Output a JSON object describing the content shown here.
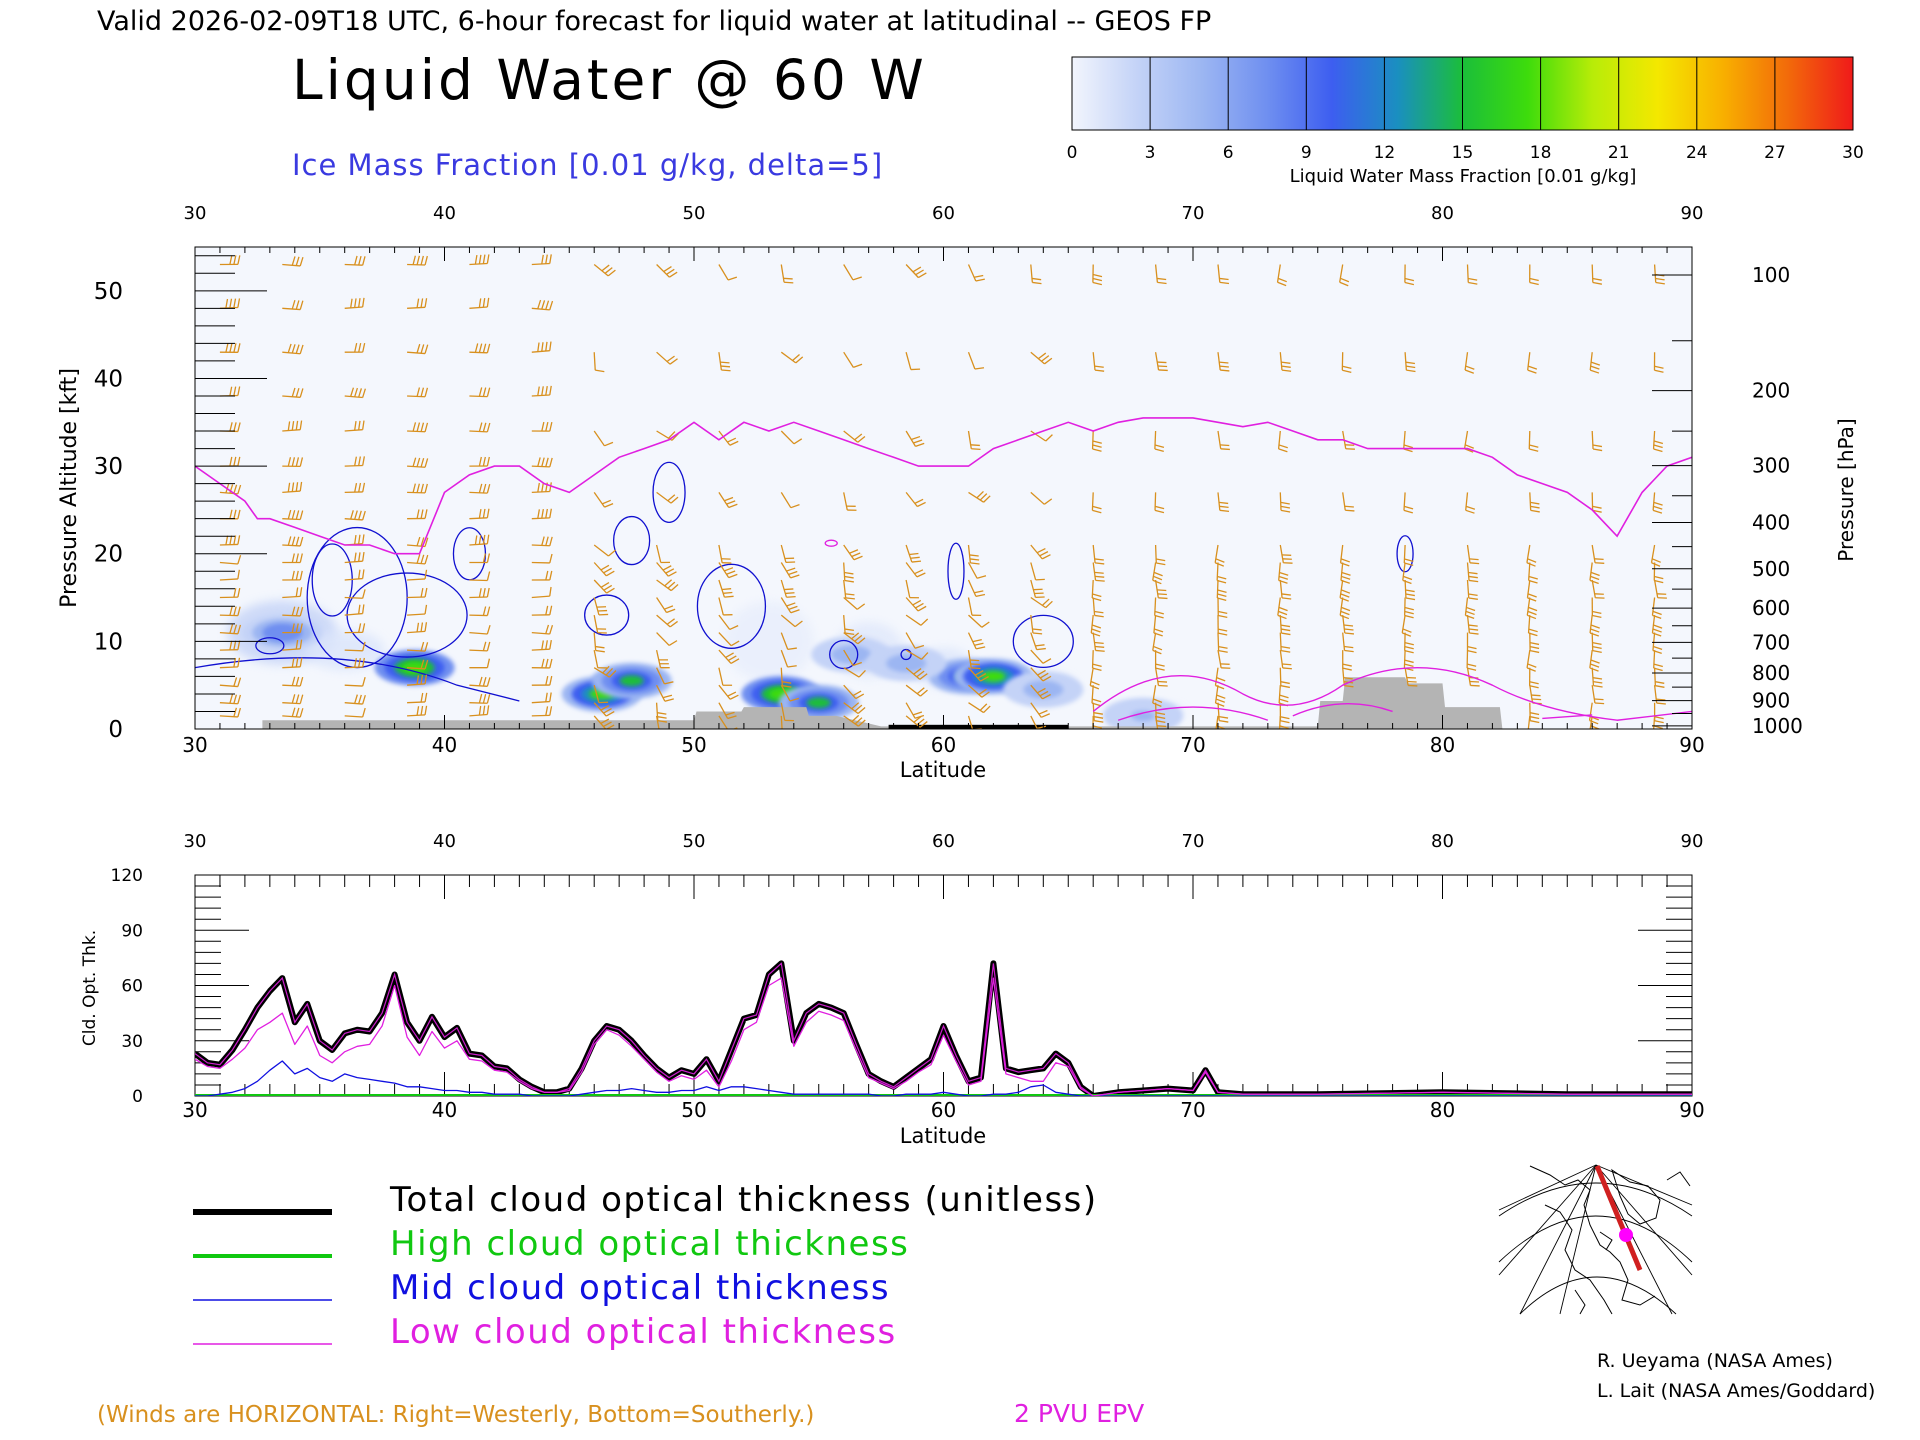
{
  "header": {
    "valid_line": "Valid 2026-02-09T18 UTC, 6-hour forecast for liquid water at latitudinal -- GEOS FP",
    "title": "Liquid Water @ 60 W",
    "subtitle": "Ice Mass Fraction [0.01 g/kg, delta=5]"
  },
  "colorbar": {
    "label": "Liquid Water Mass Fraction [0.01 g/kg]",
    "ticks": [
      "0",
      "3",
      "6",
      "9",
      "12",
      "15",
      "18",
      "21",
      "24",
      "27",
      "30"
    ],
    "colors": [
      "#f2f5fd",
      "#c4d3f7",
      "#9cb6f2",
      "#6f8ff0",
      "#3d5ef0",
      "#1a8fc0",
      "#1bbe3a",
      "#3ddc0c",
      "#b8ec08",
      "#f4e800",
      "#f8b000",
      "#f26a0a",
      "#f01a1a"
    ]
  },
  "colors": {
    "wind": "#d8901e",
    "ice_contour": "#1010d0",
    "epv": "#e020e0",
    "terrain": "#b4b4b4",
    "total": "#000000",
    "high": "#10c810",
    "mid": "#1010e0",
    "low": "#e020e0"
  },
  "top_panel": {
    "xlabel": "Latitude",
    "ylabel_left": "Pressure Altitude [kft]",
    "ylabel_right": "Pressure [hPa]",
    "x_ticks": [
      "30",
      "40",
      "50",
      "60",
      "70",
      "80",
      "90"
    ],
    "kft_ticks": [
      "0",
      "10",
      "20",
      "30",
      "40",
      "50"
    ],
    "hpa_ticks": [
      "100",
      "200",
      "300",
      "400",
      "500",
      "600",
      "700",
      "800",
      "900",
      "1000"
    ],
    "hpa_values": [
      100,
      200,
      300,
      400,
      500,
      600,
      700,
      800,
      900,
      1000
    ]
  },
  "bottom_panel": {
    "xlabel": "Latitude",
    "ylabel": "Cld. Opt. Thk.",
    "x_ticks": [
      "30",
      "40",
      "50",
      "60",
      "70",
      "80",
      "90"
    ],
    "y_ticks": [
      "0",
      "30",
      "60",
      "90",
      "120"
    ]
  },
  "legend": [
    {
      "label": "Total cloud optical thickness (unitless)",
      "color": "#000000"
    },
    {
      "label": "High cloud optical thickness",
      "color": "#10c810"
    },
    {
      "label": "Mid cloud optical thickness",
      "color": "#1010e0"
    },
    {
      "label": "Low cloud optical thickness",
      "color": "#e020e0"
    }
  ],
  "footer": {
    "winds_note": "(Winds are HORIZONTAL: Right=Westerly, Bottom=Southerly.)",
    "epv_note": "2 PVU EPV",
    "credit1": "R. Ueyama (NASA Ames)",
    "credit2": "L. Lait (NASA Ames/Goddard)"
  },
  "chart_data": [
    {
      "type": "heatmap",
      "title": "Liquid Water @ 60 W",
      "xlabel": "Latitude",
      "ylabel": "Pressure Altitude [kft]",
      "xlim": [
        30,
        90
      ],
      "ylim": [
        0,
        55
      ],
      "units": "0.01 g/kg",
      "liquid_water_blobs": [
        {
          "lat": 38.8,
          "alt_kft": 7.0,
          "peak": 18
        },
        {
          "lat": 46.3,
          "alt_kft": 4.0,
          "peak": 17
        },
        {
          "lat": 47.5,
          "alt_kft": 5.5,
          "peak": 14
        },
        {
          "lat": 53.5,
          "alt_kft": 4.0,
          "peak": 18
        },
        {
          "lat": 55.0,
          "alt_kft": 3.0,
          "peak": 14
        },
        {
          "lat": 61.0,
          "alt_kft": 6.0,
          "peak": 14
        },
        {
          "lat": 62.0,
          "alt_kft": 6.0,
          "peak": 17
        },
        {
          "lat": 33.5,
          "alt_kft": 11.0,
          "peak": 8
        },
        {
          "lat": 56.3,
          "alt_kft": 8.5,
          "peak": 6
        },
        {
          "lat": 58.5,
          "alt_kft": 7.5,
          "peak": 5
        },
        {
          "lat": 64.0,
          "alt_kft": 4.5,
          "peak": 6
        },
        {
          "lat": 68.0,
          "alt_kft": 1.5,
          "peak": 4
        }
      ],
      "epv_2pvu_kft": {
        "lat": [
          30,
          31,
          32,
          32.5,
          33,
          34,
          35,
          36,
          37,
          38,
          39,
          40,
          41,
          42,
          43,
          44,
          45,
          46,
          47,
          48,
          49,
          50,
          51,
          52,
          53,
          54,
          55,
          56,
          57,
          58,
          59,
          60,
          61,
          62,
          63,
          64,
          65,
          66,
          67,
          68,
          69,
          70,
          71,
          72,
          73,
          74,
          75,
          76,
          77,
          78,
          79,
          80,
          81,
          82,
          83,
          84,
          85,
          86,
          87,
          88,
          89,
          90
        ],
        "kft": [
          30,
          28,
          26,
          24,
          24,
          23,
          22,
          21,
          21,
          20,
          20,
          27,
          29,
          30,
          30,
          28,
          27,
          29,
          31,
          32,
          33,
          35,
          33,
          35,
          34,
          35,
          34,
          33,
          32,
          31,
          30,
          30,
          30,
          32,
          33,
          34,
          35,
          34,
          35,
          35.5,
          35.5,
          35.5,
          35,
          34.5,
          35,
          34,
          33,
          33,
          32,
          32,
          32,
          32,
          32,
          31,
          29,
          28,
          27,
          25,
          22,
          27,
          30,
          31
        ]
      },
      "terrain_kft": {
        "lat": [
          32.7,
          50.0,
          50.1,
          51.9,
          52.0,
          54.5,
          54.6,
          55.7,
          57.5,
          60.0,
          62.5,
          65.0,
          75.0,
          75.1,
          76.0,
          76.1,
          78.5,
          78.6,
          80.0,
          80.1,
          82.3,
          82.4
        ],
        "kft": [
          1.0,
          1.0,
          2.0,
          2.0,
          2.5,
          2.5,
          1.5,
          1.5,
          0.3,
          0.3,
          0.3,
          0.3,
          0.3,
          3.2,
          3.2,
          5.9,
          5.9,
          5.2,
          5.2,
          2.5,
          2.5,
          0.0
        ]
      }
    },
    {
      "type": "line",
      "xlabel": "Latitude",
      "ylabel": "Cld. Opt. Thk.",
      "xlim": [
        30,
        90
      ],
      "ylim": [
        0,
        120
      ],
      "x": [
        30,
        30.5,
        31,
        31.5,
        32,
        32.5,
        33,
        33.5,
        34,
        34.5,
        35,
        35.5,
        36,
        36.5,
        37,
        37.5,
        38,
        38.5,
        39,
        39.5,
        40,
        40.5,
        41,
        41.5,
        42,
        42.5,
        43,
        43.5,
        44,
        44.5,
        45,
        45.5,
        46,
        46.5,
        47,
        47.5,
        48,
        48.5,
        49,
        49.5,
        50,
        50.5,
        51,
        51.5,
        52,
        52.5,
        53,
        53.5,
        54,
        54.5,
        55,
        55.5,
        56,
        56.5,
        57,
        57.5,
        58,
        58.5,
        59,
        59.5,
        60,
        60.5,
        61,
        61.5,
        62,
        62.5,
        63,
        63.5,
        64,
        64.5,
        65,
        65.5,
        66,
        67,
        68,
        69,
        70,
        70.5,
        71,
        72,
        75,
        80,
        85,
        90
      ],
      "series": [
        {
          "name": "Total cloud optical thickness (unitless)",
          "values": [
            23,
            18,
            17,
            25,
            36,
            48,
            57,
            64,
            40,
            50,
            30,
            25,
            34,
            36,
            35,
            45,
            66,
            40,
            30,
            43,
            32,
            37,
            23,
            22,
            16,
            15,
            9,
            5,
            2,
            2,
            4,
            15,
            30,
            38,
            36,
            30,
            22,
            15,
            10,
            14,
            12,
            20,
            8,
            25,
            42,
            44,
            66,
            72,
            30,
            45,
            50,
            48,
            45,
            28,
            12,
            8,
            5,
            10,
            15,
            20,
            38,
            22,
            8,
            10,
            72,
            15,
            13,
            14,
            15,
            23,
            18,
            5,
            0,
            2,
            3,
            4,
            3,
            14,
            2,
            1,
            1,
            2,
            1,
            1
          ]
        },
        {
          "name": "High cloud optical thickness",
          "values": [
            0,
            0,
            0,
            0,
            0,
            0,
            0,
            0,
            0,
            0,
            0,
            0,
            0,
            0,
            0,
            0,
            0,
            0,
            0,
            0,
            0,
            0,
            0,
            0,
            0,
            0,
            0,
            0,
            0,
            0,
            0,
            0,
            0,
            0,
            0,
            0,
            0,
            0,
            0,
            0,
            0,
            0,
            0,
            0,
            0,
            0,
            0,
            0,
            0,
            0,
            0,
            0,
            0,
            0,
            0,
            0,
            0,
            0,
            0,
            0,
            0,
            0,
            0,
            0,
            0,
            0,
            0,
            0,
            0,
            0,
            0,
            0,
            0,
            0,
            0,
            0,
            0,
            0,
            0,
            0,
            0,
            0,
            0,
            0
          ]
        },
        {
          "name": "Mid cloud optical thickness",
          "values": [
            0,
            0,
            1,
            2,
            4,
            8,
            14,
            19,
            12,
            15,
            10,
            8,
            12,
            10,
            9,
            8,
            7,
            5,
            5,
            4,
            3,
            3,
            2,
            2,
            1,
            1,
            1,
            0,
            0,
            0,
            0,
            1,
            2,
            3,
            3,
            4,
            3,
            2,
            2,
            3,
            3,
            5,
            3,
            5,
            5,
            4,
            3,
            2,
            1,
            1,
            1,
            1,
            1,
            1,
            1,
            0,
            0,
            1,
            1,
            1,
            2,
            1,
            0,
            0,
            1,
            1,
            2,
            5,
            6,
            2,
            1,
            0,
            0,
            0,
            0,
            0,
            0,
            0,
            0,
            0,
            0,
            0,
            0,
            0
          ]
        },
        {
          "name": "Low cloud optical thickness",
          "values": [
            20,
            16,
            15,
            20,
            26,
            36,
            40,
            45,
            28,
            38,
            22,
            18,
            24,
            27,
            28,
            38,
            60,
            32,
            22,
            35,
            26,
            30,
            20,
            19,
            14,
            13,
            8,
            4,
            2,
            2,
            3,
            13,
            28,
            36,
            33,
            27,
            20,
            13,
            8,
            11,
            9,
            14,
            5,
            19,
            36,
            40,
            60,
            64,
            27,
            40,
            46,
            44,
            41,
            25,
            10,
            7,
            4,
            8,
            13,
            17,
            33,
            19,
            6,
            8,
            64,
            12,
            10,
            8,
            8,
            18,
            16,
            4,
            0,
            2,
            3,
            4,
            3,
            13,
            2,
            1,
            1,
            2,
            1,
            1
          ]
        }
      ]
    }
  ]
}
